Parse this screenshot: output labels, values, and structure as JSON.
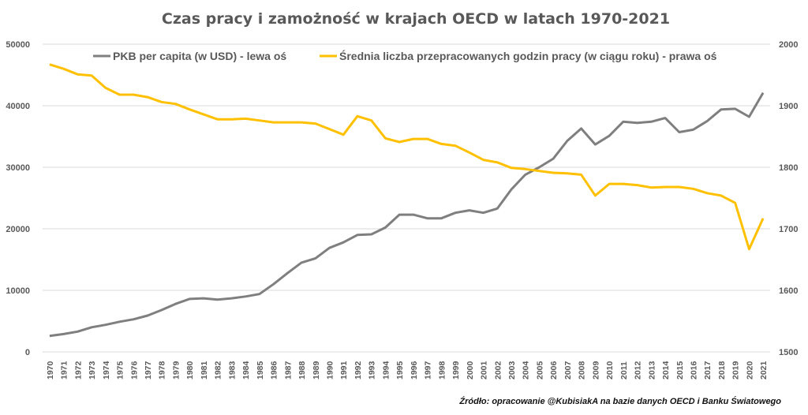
{
  "chart_data": {
    "type": "line",
    "title": "Czas pracy i zamożność w krajach OECD w latach 1970-2021",
    "source": "Źródło: opracowanie @KubisiakA na bazie danych OECD i Banku Światowego",
    "legend_position": "top",
    "grid": true,
    "x": [
      "1970",
      "1971",
      "1972",
      "1973",
      "1974",
      "1975",
      "1976",
      "1977",
      "1978",
      "1979",
      "1980",
      "1981",
      "1982",
      "1983",
      "1984",
      "1985",
      "1986",
      "1987",
      "1988",
      "1989",
      "1990",
      "1991",
      "1992",
      "1993",
      "1994",
      "1995",
      "1996",
      "1997",
      "1998",
      "1999",
      "2000",
      "2001",
      "2002",
      "2003",
      "2004",
      "2005",
      "2006",
      "2007",
      "2008",
      "2009",
      "2010",
      "2011",
      "2012",
      "2013",
      "2014",
      "2015",
      "2016",
      "2017",
      "2018",
      "2019",
      "2020",
      "2021"
    ],
    "y_left": {
      "ylim": [
        0,
        50000
      ],
      "ticks": [
        "0",
        "10000",
        "20000",
        "30000",
        "40000",
        "50000"
      ]
    },
    "y_right": {
      "ylim": [
        1500,
        2000
      ],
      "ticks": [
        "1500",
        "1600",
        "1700",
        "1800",
        "1900",
        "2000"
      ]
    },
    "series": [
      {
        "name": "PKB per capita (w USD) - lewa oś",
        "axis": "left",
        "color": "#7f7f7f",
        "values": [
          2600,
          2900,
          3300,
          4000,
          4400,
          4900,
          5300,
          5900,
          6800,
          7800,
          8600,
          8700,
          8500,
          8700,
          9000,
          9400,
          11000,
          12800,
          14500,
          15200,
          16900,
          17800,
          19000,
          19100,
          20200,
          22300,
          22300,
          21700,
          21700,
          22600,
          23000,
          22600,
          23300,
          26400,
          28800,
          30000,
          31400,
          34300,
          36300,
          33700,
          35100,
          37400,
          37200,
          37400,
          38000,
          35700,
          36100,
          37500,
          39400,
          39500,
          38200,
          42100
        ]
      },
      {
        "name": "Średnia liczba przepracowanych godzin pracy (w ciągu roku) - prawa oś",
        "axis": "right",
        "color": "#ffc000",
        "values": [
          1967,
          1960,
          1951,
          1949,
          1929,
          1918,
          1918,
          1914,
          1906,
          1903,
          1894,
          1886,
          1878,
          1878,
          1879,
          1876,
          1873,
          1873,
          1873,
          1871,
          1862,
          1853,
          1883,
          1876,
          1847,
          1841,
          1846,
          1846,
          1838,
          1835,
          1824,
          1812,
          1808,
          1799,
          1797,
          1794,
          1791,
          1790,
          1788,
          1754,
          1773,
          1773,
          1771,
          1767,
          1768,
          1768,
          1765,
          1758,
          1754,
          1742,
          1667,
          1717
        ]
      }
    ]
  }
}
